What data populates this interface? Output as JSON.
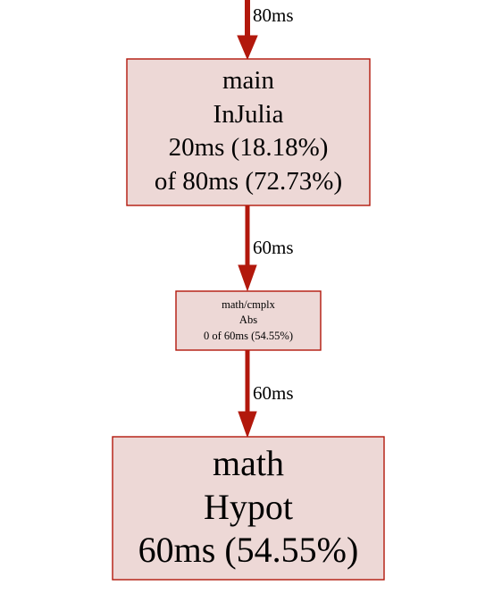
{
  "graph": {
    "nodes": [
      {
        "id": "main-injulia",
        "package": "main",
        "function": "InJulia",
        "flat": "20ms (18.18%)",
        "cumulative": "of 80ms (72.73%)"
      },
      {
        "id": "cmplx-abs",
        "package": "math/cmplx",
        "function": "Abs",
        "flat": "0 of 60ms (54.55%)"
      },
      {
        "id": "math-hypot",
        "package": "math",
        "function": "Hypot",
        "flat": "60ms (54.55%)"
      }
    ],
    "edges": [
      {
        "id": "edge-into-main",
        "label": "80ms"
      },
      {
        "id": "edge-main-to-abs",
        "label": "60ms"
      },
      {
        "id": "edge-abs-to-hypot",
        "label": "60ms"
      }
    ],
    "colors": {
      "node_fill": "#edd8d6",
      "node_stroke": "#b2180c",
      "edge": "#b2180c"
    }
  }
}
